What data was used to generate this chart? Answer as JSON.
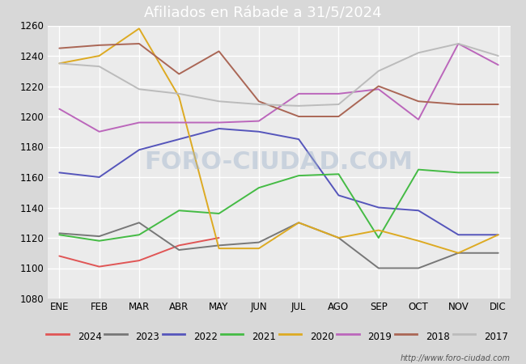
{
  "title": "Afiliados en Rábade a 31/5/2024",
  "title_bg": "#4d7ebf",
  "xlabel": "",
  "ylabel": "",
  "ylim": [
    1080,
    1260
  ],
  "yticks": [
    1080,
    1100,
    1120,
    1140,
    1160,
    1180,
    1200,
    1220,
    1240,
    1260
  ],
  "months": [
    "ENE",
    "FEB",
    "MAR",
    "ABR",
    "MAY",
    "JUN",
    "JUL",
    "AGO",
    "SEP",
    "OCT",
    "NOV",
    "DIC"
  ],
  "series": {
    "2024": {
      "color": "#e05555",
      "data": [
        1108,
        1101,
        1105,
        1115,
        1120,
        null,
        null,
        null,
        null,
        null,
        null,
        null
      ]
    },
    "2023": {
      "color": "#777777",
      "data": [
        1123,
        1121,
        1130,
        1112,
        1115,
        1117,
        1130,
        1120,
        1100,
        1100,
        1110,
        1110
      ]
    },
    "2022": {
      "color": "#5555bb",
      "data": [
        1163,
        1160,
        1178,
        1185,
        1192,
        1190,
        1185,
        1148,
        1140,
        1138,
        1122,
        1122
      ]
    },
    "2021": {
      "color": "#44bb44",
      "data": [
        1122,
        1118,
        1122,
        1138,
        1136,
        1153,
        1161,
        1162,
        1120,
        1165,
        1163,
        1163
      ]
    },
    "2020": {
      "color": "#ddaa22",
      "data": [
        1235,
        1240,
        1258,
        1213,
        1113,
        1113,
        1130,
        1120,
        1125,
        1118,
        1110,
        1122
      ]
    },
    "2019": {
      "color": "#bb66bb",
      "data": [
        1205,
        1190,
        1196,
        1196,
        1196,
        1197,
        1215,
        1215,
        1218,
        1198,
        1248,
        1234
      ]
    },
    "2018": {
      "color": "#aa6655",
      "data": [
        1245,
        1247,
        1248,
        1228,
        1243,
        1210,
        1200,
        1200,
        1220,
        1210,
        1208,
        1208
      ]
    },
    "2017": {
      "color": "#bbbbbb",
      "data": [
        1235,
        1233,
        1218,
        1215,
        1210,
        1208,
        1207,
        1208,
        1230,
        1242,
        1248,
        1240
      ]
    }
  },
  "watermark": "FORO-CIUDAD.COM",
  "url": "http://www.foro-ciudad.com",
  "background_color": "#d8d8d8",
  "plot_bg": "#ebebeb",
  "grid_color": "#ffffff",
  "legend_order": [
    "2024",
    "2023",
    "2022",
    "2021",
    "2020",
    "2019",
    "2018",
    "2017"
  ]
}
